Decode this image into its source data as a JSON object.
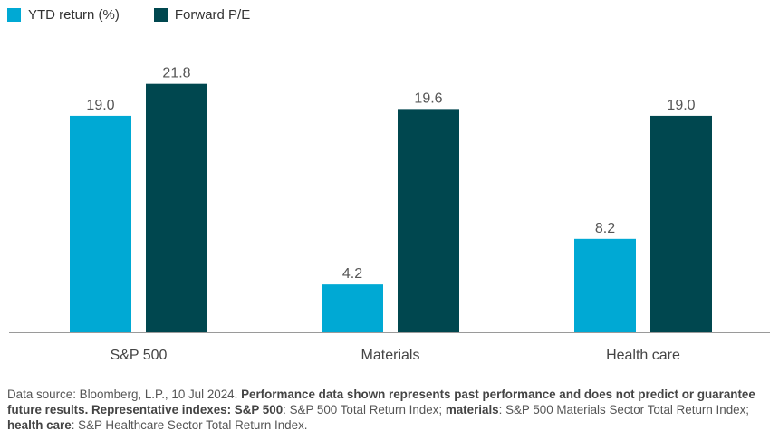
{
  "chart_data": {
    "type": "bar",
    "categories": [
      "S&P 500",
      "Materials",
      "Health care"
    ],
    "series": [
      {
        "name": "YTD return (%)",
        "values": [
          19.0,
          4.2,
          8.2
        ],
        "color": "#00a9d4"
      },
      {
        "name": "Forward P/E",
        "values": [
          21.8,
          19.6,
          19.0
        ],
        "color": "#00474f"
      }
    ],
    "ylim": [
      0,
      24
    ],
    "grid": false,
    "legend": "top-left"
  },
  "footnote": {
    "source": "Data source: Bloomberg, L.P., 10 Jul 2024. ",
    "disclaimer": "Performance data shown represents past performance and does not predict or guarantee future results. Representative indexes: ",
    "k1": "S&P 500",
    "v1": ": S&P 500 Total Return Index; ",
    "k2": "materials",
    "v2": ": S&P 500 Materials Sector Total Return Index; ",
    "k3": "health care",
    "v3": ": S&P Healthcare Sector Total Return Index."
  }
}
